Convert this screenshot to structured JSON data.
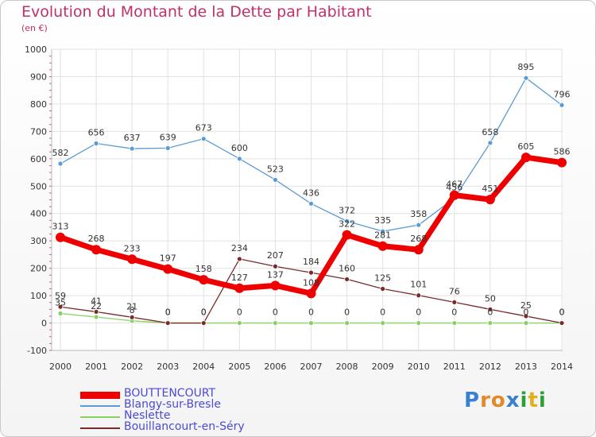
{
  "title": "Evolution du Montant de la Dette par Habitant",
  "subtitle": "(en €)",
  "logo_text": "Proxiti",
  "chart_data": {
    "type": "line",
    "title": "Evolution du Montant de la Dette par Habitant",
    "subtitle": "(en €)",
    "x": [
      "2000",
      "2001",
      "2002",
      "2003",
      "2004",
      "2005",
      "2006",
      "2007",
      "2008",
      "2009",
      "2010",
      "2011",
      "2012",
      "2013",
      "2014"
    ],
    "yticks": [
      "-100",
      "0",
      "100",
      "200",
      "300",
      "400",
      "500",
      "600",
      "700",
      "800",
      "900",
      "1000"
    ],
    "ylim": [
      -100,
      1000
    ],
    "grid": true,
    "legend_position": "bottom-left",
    "series": [
      {
        "name": "BOUTTENCOURT",
        "color": "#ee0000",
        "values": [
          313,
          268,
          233,
          197,
          158,
          127,
          137,
          108,
          322,
          281,
          268,
          467,
          451,
          605,
          586
        ],
        "labels": [
          "313",
          "268",
          "233",
          "197",
          "158",
          "127",
          "137",
          "108",
          "322",
          "281",
          "268",
          "467",
          "451",
          "605",
          "586"
        ]
      },
      {
        "name": "Blangy-sur-Bresle",
        "color": "#5b9bd5",
        "values": [
          582,
          656,
          637,
          639,
          673,
          600,
          523,
          436,
          372,
          335,
          358,
          456,
          658,
          895,
          796
        ],
        "labels": [
          "582",
          "656",
          "637",
          "639",
          "673",
          "600",
          "523",
          "436",
          "372",
          "335",
          "358",
          "456",
          "658",
          "895",
          "796"
        ]
      },
      {
        "name": "Neslette",
        "color": "#88d060",
        "values": [
          35,
          22,
          8,
          0,
          0,
          0,
          0,
          0,
          0,
          0,
          0,
          0,
          0,
          0,
          0
        ],
        "labels": [
          "35",
          "22",
          "8",
          "0",
          "0",
          "0",
          "0",
          "0",
          "0",
          "0",
          "0",
          "0",
          "0",
          "0",
          "0"
        ]
      },
      {
        "name": "Bouillancourt-en-Séry",
        "color": "#7a2a2a",
        "values": [
          59,
          41,
          21,
          0,
          0,
          234,
          207,
          184,
          160,
          125,
          101,
          76,
          50,
          25,
          0
        ],
        "labels": [
          "59",
          "41",
          "21",
          "0",
          "0",
          "234",
          "207",
          "184",
          "160",
          "125",
          "101",
          "76",
          "50",
          "25",
          "0"
        ]
      }
    ]
  }
}
